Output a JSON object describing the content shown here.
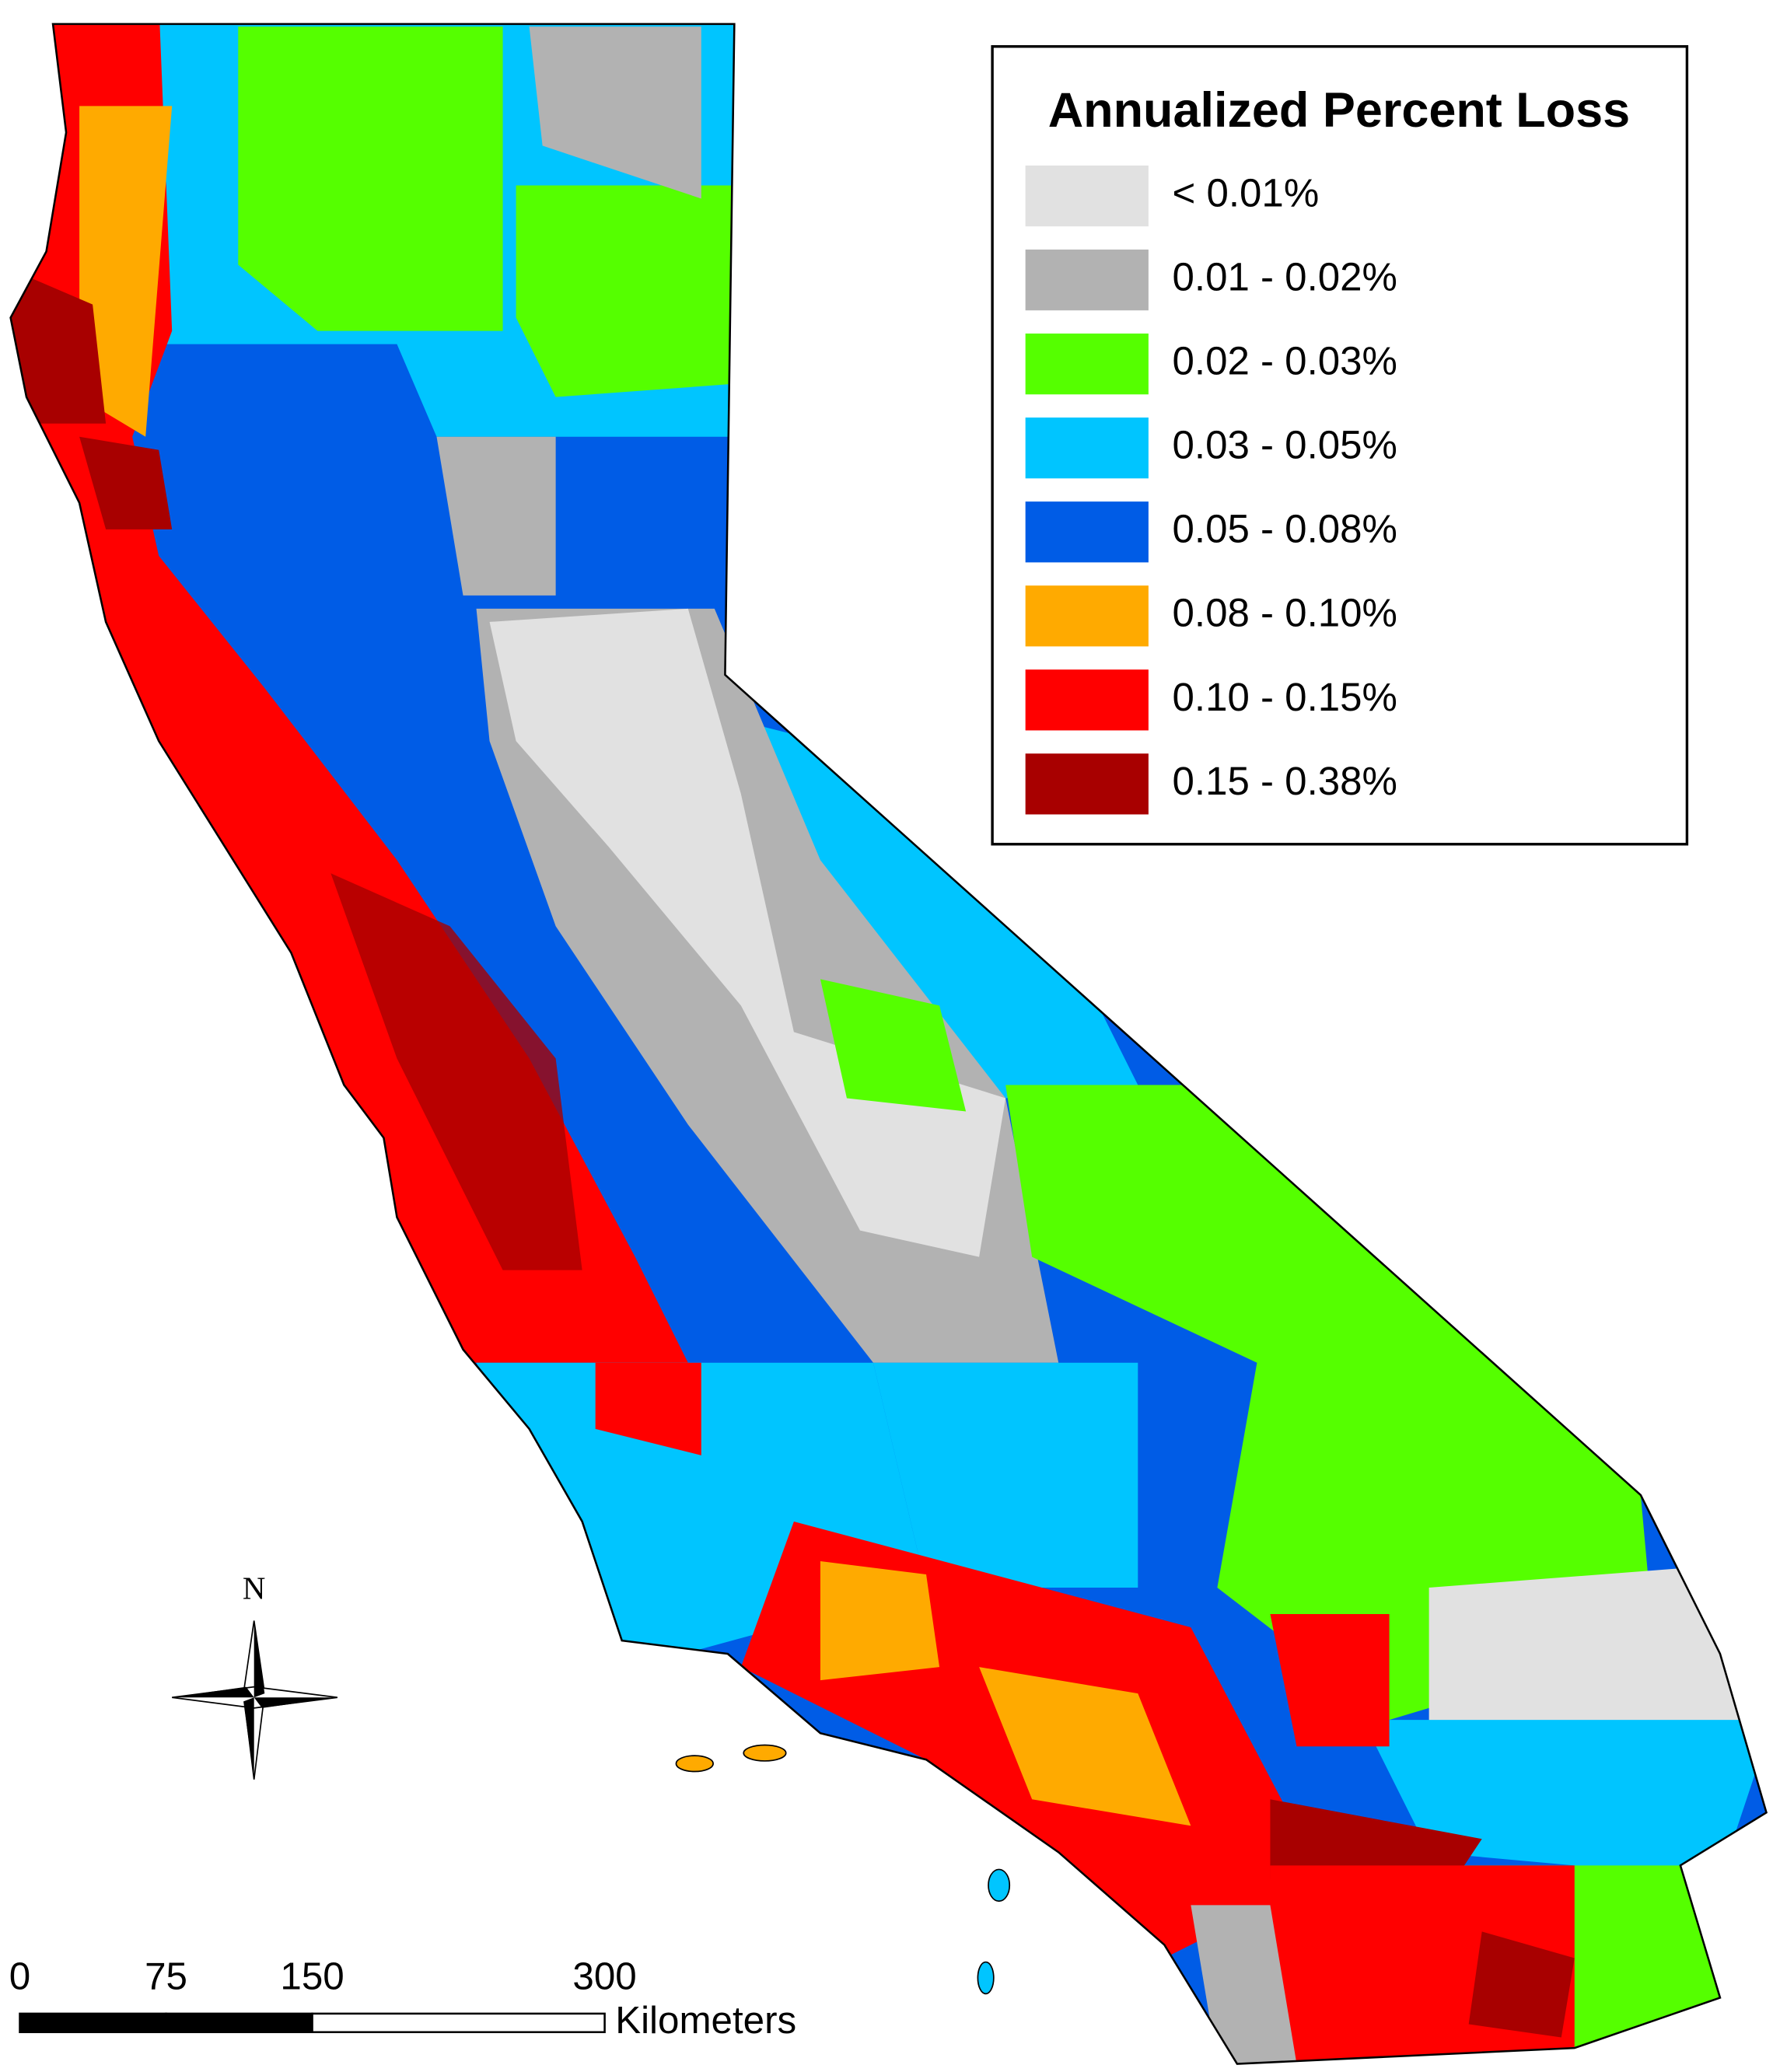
{
  "legend": {
    "title": "Annualized Percent Loss",
    "items": [
      {
        "label": "< 0.01%",
        "color": "#e1e1e1"
      },
      {
        "label": "0.01 - 0.02%",
        "color": "#b2b2b2"
      },
      {
        "label": "0.02 - 0.03%",
        "color": "#55ff00"
      },
      {
        "label": "0.03 - 0.05%",
        "color": "#00c5ff"
      },
      {
        "label": "0.05 - 0.08%",
        "color": "#005ce6"
      },
      {
        "label": "0.08 - 0.10%",
        "color": "#ffaa00"
      },
      {
        "label": "0.10 - 0.15%",
        "color": "#ff0000"
      },
      {
        "label": "0.15 - 0.38%",
        "color": "#a80000"
      }
    ]
  },
  "compass": {
    "north": "N"
  },
  "scale_bar": {
    "ticks": [
      0,
      75,
      150,
      300
    ],
    "unit": "Kilometers"
  }
}
